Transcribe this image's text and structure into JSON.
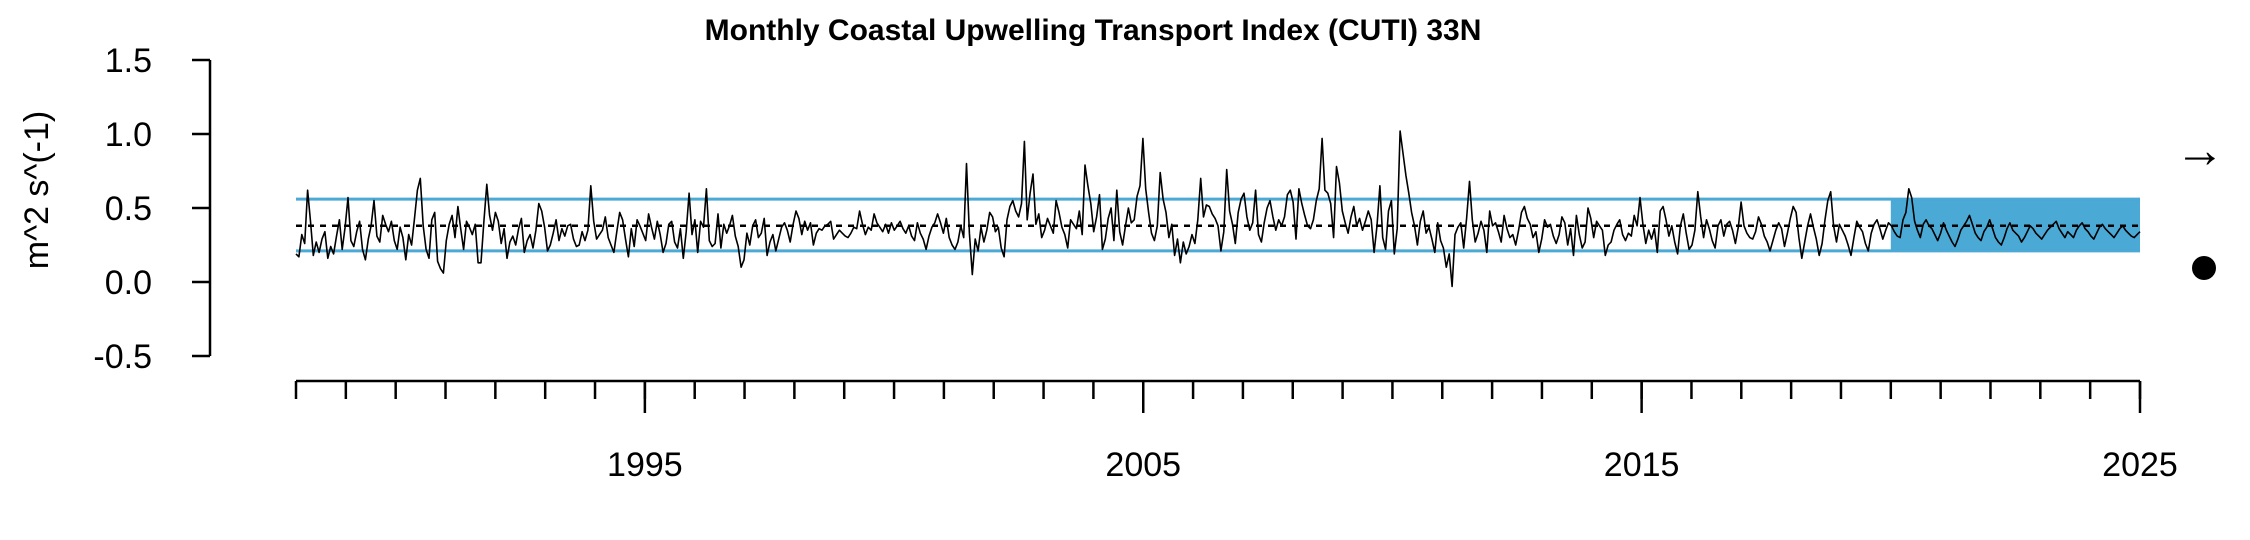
{
  "chart_data": {
    "type": "line",
    "title": "Monthly Coastal Upwelling Transport Index (CUTI) 33N",
    "xlabel": "",
    "ylabel": "m^2 s^(-1)",
    "ylim": [
      -0.5,
      1.5
    ],
    "xlim": [
      1988,
      2025
    ],
    "yticks": [
      {
        "value": 1.5,
        "label": "1.5"
      },
      {
        "value": 1.0,
        "label": "1.0"
      },
      {
        "value": 0.5,
        "label": "0.5"
      },
      {
        "value": 0.0,
        "label": "0.0"
      },
      {
        "value": -0.5,
        "label": "-0.5"
      }
    ],
    "xticks_major": [
      {
        "value": 1995,
        "label": "1995"
      },
      {
        "value": 2005,
        "label": "2005"
      },
      {
        "value": 2015,
        "label": "2015"
      },
      {
        "value": 2025,
        "label": "2025"
      }
    ],
    "mean": 0.38,
    "upper_sd": 0.56,
    "lower_sd": 0.21,
    "recent_window": {
      "start": 2020.0,
      "end": 2025.0
    },
    "trend_symbol": "→",
    "mean_symbol": "●",
    "colors": {
      "band": "#4BA9D6",
      "line": "#000000"
    },
    "grid": false,
    "series": [
      {
        "values": [
          0.19,
          0.17,
          0.32,
          0.26,
          0.62,
          0.41,
          0.18,
          0.27,
          0.2,
          0.29,
          0.34,
          0.16,
          0.24,
          0.19,
          0.31,
          0.42,
          0.22,
          0.37,
          0.57,
          0.28,
          0.24,
          0.34,
          0.41,
          0.22,
          0.15,
          0.29,
          0.38,
          0.55,
          0.31,
          0.27,
          0.45,
          0.39,
          0.34,
          0.41,
          0.28,
          0.22,
          0.37,
          0.3,
          0.15,
          0.32,
          0.25,
          0.43,
          0.62,
          0.7,
          0.38,
          0.22,
          0.16,
          0.42,
          0.47,
          0.14,
          0.09,
          0.06,
          0.28,
          0.39,
          0.45,
          0.3,
          0.51,
          0.36,
          0.22,
          0.41,
          0.37,
          0.32,
          0.39,
          0.13,
          0.13,
          0.41,
          0.66,
          0.45,
          0.35,
          0.47,
          0.41,
          0.26,
          0.36,
          0.16,
          0.27,
          0.31,
          0.25,
          0.36,
          0.43,
          0.2,
          0.28,
          0.32,
          0.23,
          0.35,
          0.53,
          0.48,
          0.37,
          0.21,
          0.25,
          0.33,
          0.42,
          0.28,
          0.36,
          0.31,
          0.38,
          0.39,
          0.29,
          0.24,
          0.25,
          0.34,
          0.28,
          0.35,
          0.65,
          0.41,
          0.29,
          0.32,
          0.35,
          0.44,
          0.3,
          0.25,
          0.2,
          0.34,
          0.47,
          0.42,
          0.29,
          0.17,
          0.36,
          0.24,
          0.42,
          0.38,
          0.33,
          0.28,
          0.46,
          0.37,
          0.29,
          0.41,
          0.32,
          0.2,
          0.26,
          0.39,
          0.41,
          0.27,
          0.23,
          0.36,
          0.16,
          0.34,
          0.6,
          0.32,
          0.42,
          0.2,
          0.41,
          0.37,
          0.63,
          0.28,
          0.24,
          0.26,
          0.46,
          0.23,
          0.39,
          0.33,
          0.38,
          0.45,
          0.31,
          0.24,
          0.1,
          0.15,
          0.33,
          0.25,
          0.38,
          0.42,
          0.3,
          0.33,
          0.43,
          0.18,
          0.27,
          0.32,
          0.21,
          0.29,
          0.37,
          0.4,
          0.35,
          0.27,
          0.39,
          0.48,
          0.43,
          0.32,
          0.41,
          0.35,
          0.4,
          0.25,
          0.33,
          0.36,
          0.35,
          0.38,
          0.39,
          0.41,
          0.29,
          0.32,
          0.35,
          0.33,
          0.31,
          0.3,
          0.33,
          0.37,
          0.36,
          0.48,
          0.39,
          0.32,
          0.37,
          0.35,
          0.46,
          0.4,
          0.37,
          0.34,
          0.39,
          0.33,
          0.4,
          0.35,
          0.38,
          0.41,
          0.36,
          0.33,
          0.38,
          0.31,
          0.28,
          0.4,
          0.33,
          0.29,
          0.22,
          0.31,
          0.37,
          0.4,
          0.46,
          0.4,
          0.33,
          0.43,
          0.3,
          0.25,
          0.22,
          0.27,
          0.38,
          0.3,
          0.8,
          0.33,
          0.05,
          0.29,
          0.21,
          0.37,
          0.27,
          0.35,
          0.47,
          0.44,
          0.34,
          0.37,
          0.23,
          0.17,
          0.42,
          0.51,
          0.55,
          0.48,
          0.44,
          0.53,
          0.95,
          0.42,
          0.6,
          0.73,
          0.39,
          0.46,
          0.3,
          0.35,
          0.43,
          0.38,
          0.33,
          0.55,
          0.47,
          0.37,
          0.32,
          0.23,
          0.42,
          0.39,
          0.36,
          0.48,
          0.32,
          0.79,
          0.65,
          0.53,
          0.34,
          0.44,
          0.59,
          0.22,
          0.29,
          0.43,
          0.5,
          0.28,
          0.62,
          0.34,
          0.25,
          0.38,
          0.5,
          0.4,
          0.42,
          0.58,
          0.65,
          0.97,
          0.63,
          0.47,
          0.33,
          0.28,
          0.38,
          0.74,
          0.56,
          0.47,
          0.3,
          0.39,
          0.18,
          0.29,
          0.13,
          0.27,
          0.19,
          0.24,
          0.32,
          0.26,
          0.42,
          0.7,
          0.44,
          0.52,
          0.51,
          0.46,
          0.43,
          0.38,
          0.21,
          0.34,
          0.76,
          0.48,
          0.39,
          0.26,
          0.47,
          0.56,
          0.6,
          0.44,
          0.35,
          0.4,
          0.62,
          0.32,
          0.27,
          0.4,
          0.5,
          0.55,
          0.44,
          0.35,
          0.42,
          0.38,
          0.44,
          0.59,
          0.62,
          0.54,
          0.29,
          0.63,
          0.53,
          0.45,
          0.38,
          0.36,
          0.42,
          0.55,
          0.63,
          0.97,
          0.62,
          0.6,
          0.53,
          0.3,
          0.78,
          0.67,
          0.48,
          0.4,
          0.33,
          0.44,
          0.51,
          0.38,
          0.43,
          0.35,
          0.41,
          0.48,
          0.42,
          0.2,
          0.38,
          0.65,
          0.3,
          0.22,
          0.48,
          0.55,
          0.19,
          0.36,
          1.02,
          0.87,
          0.72,
          0.6,
          0.47,
          0.38,
          0.25,
          0.41,
          0.48,
          0.33,
          0.37,
          0.29,
          0.2,
          0.4,
          0.28,
          0.23,
          0.1,
          0.19,
          -0.03,
          0.32,
          0.37,
          0.4,
          0.23,
          0.43,
          0.68,
          0.42,
          0.27,
          0.33,
          0.41,
          0.35,
          0.2,
          0.48,
          0.38,
          0.4,
          0.34,
          0.27,
          0.45,
          0.36,
          0.3,
          0.32,
          0.25,
          0.35,
          0.47,
          0.51,
          0.43,
          0.39,
          0.3,
          0.34,
          0.2,
          0.29,
          0.42,
          0.37,
          0.39,
          0.31,
          0.26,
          0.32,
          0.44,
          0.4,
          0.25,
          0.36,
          0.18,
          0.45,
          0.32,
          0.23,
          0.27,
          0.5,
          0.43,
          0.3,
          0.41,
          0.38,
          0.35,
          0.18,
          0.25,
          0.27,
          0.35,
          0.39,
          0.42,
          0.32,
          0.28,
          0.33,
          0.31,
          0.45,
          0.38,
          0.57,
          0.39,
          0.26,
          0.35,
          0.29,
          0.36,
          0.2,
          0.48,
          0.51,
          0.42,
          0.31,
          0.38,
          0.27,
          0.19,
          0.38,
          0.46,
          0.33,
          0.22,
          0.25,
          0.35,
          0.61,
          0.44,
          0.3,
          0.42,
          0.36,
          0.28,
          0.23,
          0.38,
          0.42,
          0.31,
          0.39,
          0.41,
          0.35,
          0.26,
          0.37,
          0.54,
          0.38,
          0.33,
          0.3,
          0.29,
          0.34,
          0.44,
          0.39,
          0.31,
          0.27,
          0.21,
          0.28,
          0.35,
          0.4,
          0.36,
          0.24,
          0.33,
          0.43,
          0.51,
          0.47,
          0.3,
          0.16,
          0.27,
          0.38,
          0.46,
          0.37,
          0.29,
          0.18,
          0.26,
          0.42,
          0.55,
          0.61,
          0.38,
          0.27,
          0.39,
          0.35,
          0.31,
          0.25,
          0.18,
          0.3,
          0.41,
          0.37,
          0.34,
          0.26,
          0.21,
          0.33,
          0.39,
          0.42,
          0.36,
          0.29,
          0.35,
          0.4,
          0.38,
          0.34,
          0.31,
          0.3,
          0.42,
          0.47,
          0.63,
          0.57,
          0.41,
          0.35,
          0.3,
          0.39,
          0.42,
          0.38,
          0.36,
          0.32,
          0.28,
          0.33,
          0.4,
          0.35,
          0.31,
          0.27,
          0.24,
          0.29,
          0.35,
          0.38,
          0.41,
          0.45,
          0.39,
          0.33,
          0.3,
          0.28,
          0.34,
          0.37,
          0.42,
          0.36,
          0.3,
          0.27,
          0.25,
          0.3,
          0.36,
          0.4,
          0.35,
          0.33,
          0.31,
          0.27,
          0.3,
          0.34,
          0.38,
          0.36,
          0.33,
          0.31,
          0.29,
          0.32,
          0.35,
          0.37,
          0.39,
          0.41,
          0.36,
          0.33,
          0.3,
          0.34,
          0.32,
          0.3,
          0.35,
          0.38,
          0.4,
          0.36,
          0.34,
          0.31,
          0.29,
          0.33,
          0.37,
          0.39,
          0.36,
          0.34,
          0.32,
          0.3,
          0.33,
          0.36,
          0.38,
          0.35,
          0.33,
          0.31,
          0.3,
          0.32,
          0.34
        ]
      }
    ]
  }
}
